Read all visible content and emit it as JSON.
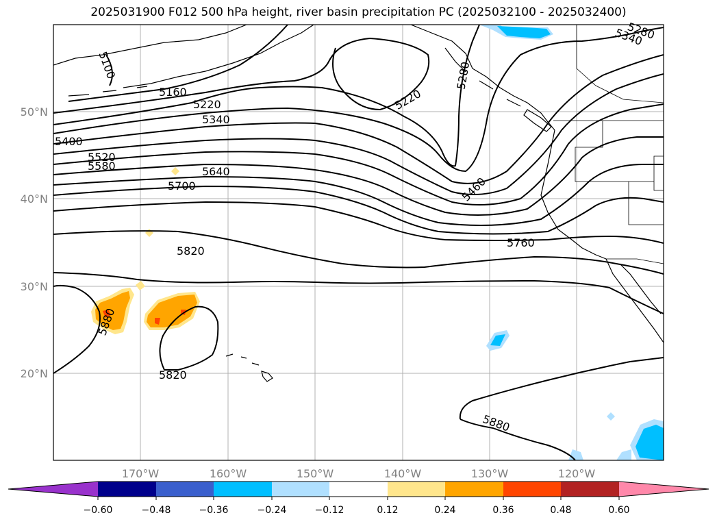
{
  "title": "2025031900 F012 500 hPa height, river basin precipitation PC (2025032100 - 2025032400)",
  "lat_labels": [
    "50°N",
    "40°N",
    "30°N",
    "20°N"
  ],
  "lon_labels": [
    "170°W",
    "160°W",
    "150°W",
    "140°W",
    "130°W",
    "120°W"
  ],
  "contour_labels": {
    "c5100": "5100",
    "c5160": "5160",
    "c5220a": "5220",
    "c5220b": "5220",
    "c5280a": "5280",
    "c5280b": "5280",
    "c5340a": "5340",
    "c5340b": "5340",
    "c5400": "5400",
    "c5460": "5460",
    "c5520": "5520",
    "c5580": "5580",
    "c5640": "5640",
    "c5700": "5700",
    "c5760": "5760",
    "c5820a": "5820",
    "c5820b": "5820",
    "c5880a": "5880",
    "c5880b": "5880"
  },
  "colorbar": {
    "ticks": [
      "−0.60",
      "−0.48",
      "−0.36",
      "−0.24",
      "−0.12",
      "0.12",
      "0.24",
      "0.36",
      "0.48",
      "0.60"
    ],
    "colors": {
      "under": "#9932cc",
      "b1": "#00008b",
      "b2": "#3a5fcd",
      "b3": "#00bfff",
      "b4": "#b0e0ff",
      "b5": "#ffffff",
      "b6": "#ffe68c",
      "b7": "#ffa500",
      "b8": "#ff4500",
      "b9": "#b22222",
      "over": "#ff88aa"
    }
  }
}
